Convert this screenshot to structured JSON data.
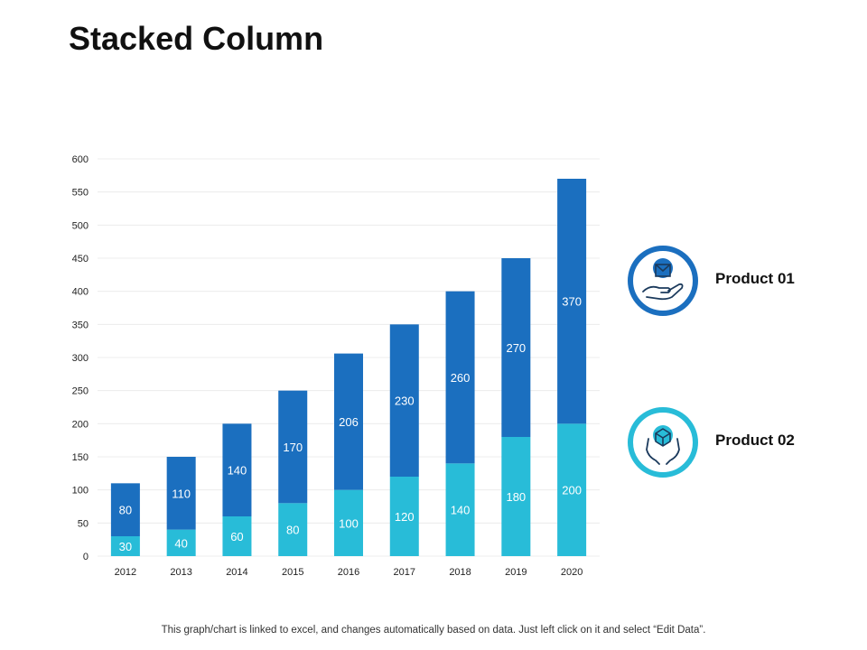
{
  "page": {
    "title": "Stacked Column",
    "footnote": "This graph/chart is linked to excel, and changes automatically based on data. Just left click on it and select “Edit Data”."
  },
  "colors": {
    "product01": "#1b6fbf",
    "product02": "#28bcd8",
    "text": "#111111",
    "grid": "#ececec"
  },
  "legend": [
    {
      "label": "Product 01",
      "icon": "hand-holding-box-icon",
      "color": "#1b6fbf"
    },
    {
      "label": "Product 02",
      "icon": "hands-with-package-icon",
      "color": "#28bcd8"
    }
  ],
  "chart_data": {
    "type": "bar",
    "stacked": true,
    "title": "Stacked Column",
    "categories": [
      "2012",
      "2013",
      "2014",
      "2015",
      "2016",
      "2017",
      "2018",
      "2019",
      "2020"
    ],
    "series": [
      {
        "name": "Product 02",
        "values": [
          30,
          40,
          60,
          80,
          100,
          120,
          140,
          180,
          200
        ]
      },
      {
        "name": "Product 01",
        "values": [
          80,
          110,
          140,
          170,
          206,
          230,
          260,
          270,
          370
        ]
      }
    ],
    "ylim": [
      0,
      600
    ],
    "yticks": [
      0,
      50,
      100,
      150,
      200,
      250,
      300,
      350,
      400,
      450,
      500,
      550,
      600
    ],
    "grid": true,
    "legend_position": "right"
  }
}
